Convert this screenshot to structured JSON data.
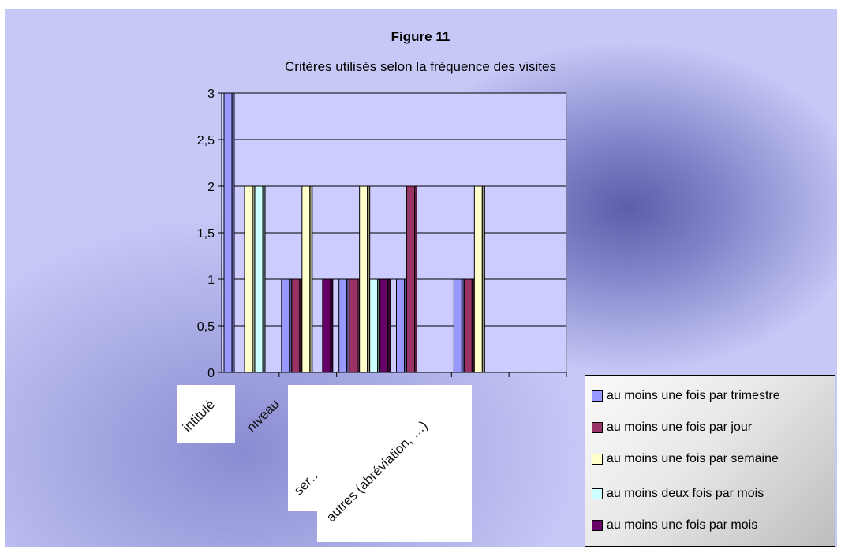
{
  "chart_data": {
    "type": "bar",
    "title": "Figure 11",
    "subtitle": "Critères utilisés selon la fréquence des visites",
    "categories": [
      "intitulé",
      "niveau",
      "ser…",
      "autres (abréviation, …)",
      "",
      ""
    ],
    "series": [
      {
        "name": "au moins une fois par trimestre",
        "color": "#9999ff",
        "values": [
          3,
          1,
          1,
          1,
          1,
          0
        ]
      },
      {
        "name": "au moins une fois par jour",
        "color": "#993366",
        "values": [
          0,
          1,
          1,
          2,
          1,
          0
        ]
      },
      {
        "name": "au moins une fois par semaine",
        "color": "#ffffcc",
        "values": [
          2,
          2,
          2,
          0,
          2,
          0
        ]
      },
      {
        "name": "au moins deux fois par mois",
        "color": "#ccffff",
        "values": [
          2,
          0,
          1,
          0,
          0,
          0
        ]
      },
      {
        "name": "au moins une fois par mois",
        "color": "#660066",
        "values": [
          0,
          1,
          1,
          0,
          0,
          0
        ]
      }
    ],
    "yticks": [
      "0",
      "0,5",
      "1",
      "1,5",
      "2",
      "2,5",
      "3"
    ],
    "ylim": [
      0,
      3
    ],
    "grid": true,
    "legend_position": "bottom-right"
  }
}
